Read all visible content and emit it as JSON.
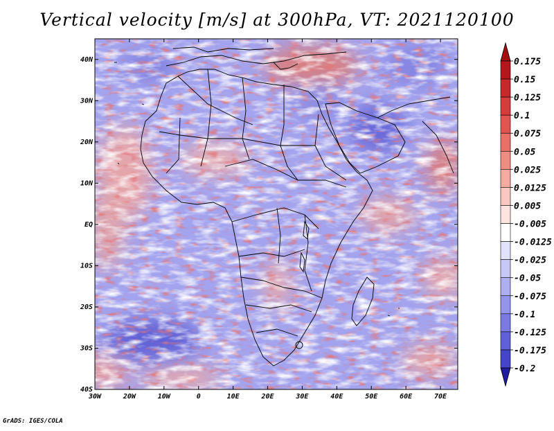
{
  "title": "Vertical velocity [m/s] at 300hPa, VT: 2021120100",
  "credit": "GrADS: IGES/COLA",
  "map": {
    "lon_range": [
      -30,
      75
    ],
    "lat_range": [
      -40,
      45
    ],
    "x_ticks": [
      {
        "value": -30,
        "label": "30W"
      },
      {
        "value": -20,
        "label": "20W"
      },
      {
        "value": -10,
        "label": "10W"
      },
      {
        "value": 0,
        "label": "0"
      },
      {
        "value": 10,
        "label": "10E"
      },
      {
        "value": 20,
        "label": "20E"
      },
      {
        "value": 30,
        "label": "30E"
      },
      {
        "value": 40,
        "label": "40E"
      },
      {
        "value": 50,
        "label": "50E"
      },
      {
        "value": 60,
        "label": "60E"
      },
      {
        "value": 70,
        "label": "70E"
      }
    ],
    "y_ticks": [
      {
        "value": 40,
        "label": "40N"
      },
      {
        "value": 30,
        "label": "30N"
      },
      {
        "value": 20,
        "label": "20N"
      },
      {
        "value": 10,
        "label": "10N"
      },
      {
        "value": 0,
        "label": "EQ"
      },
      {
        "value": -10,
        "label": "10S"
      },
      {
        "value": -20,
        "label": "20S"
      },
      {
        "value": -30,
        "label": "30S"
      },
      {
        "value": -40,
        "label": "40S"
      }
    ],
    "field_name": "vertical-velocity-300hPa"
  },
  "colorbar": {
    "levels": [
      {
        "label": "0.175",
        "color": "#b2171c"
      },
      {
        "label": "0.15",
        "color": "#c42a2a"
      },
      {
        "label": "0.125",
        "color": "#d33d3a"
      },
      {
        "label": "0.1",
        "color": "#df5550"
      },
      {
        "label": "0.075",
        "color": "#e87066"
      },
      {
        "label": "0.05",
        "color": "#f08d82"
      },
      {
        "label": "0.025",
        "color": "#f6aaa0"
      },
      {
        "label": "0.0125",
        "color": "#fac7c0"
      },
      {
        "label": "0.005",
        "color": "#fde4e0"
      },
      {
        "label": "-0.005",
        "color": "#ffffff"
      },
      {
        "label": "-0.0125",
        "color": "#e2e2fb"
      },
      {
        "label": "-0.025",
        "color": "#c8c8f6"
      },
      {
        "label": "-0.05",
        "color": "#aeaef0"
      },
      {
        "label": "-0.075",
        "color": "#9494ea"
      },
      {
        "label": "-0.1",
        "color": "#7a7ae2"
      },
      {
        "label": "-0.125",
        "color": "#6060d8"
      },
      {
        "label": "-0.175",
        "color": "#4545c8"
      },
      {
        "label": "-0.2",
        "color": "#2c2cb4"
      }
    ],
    "top_color": "#a01010",
    "bottom_color": "#1e1e9c"
  }
}
